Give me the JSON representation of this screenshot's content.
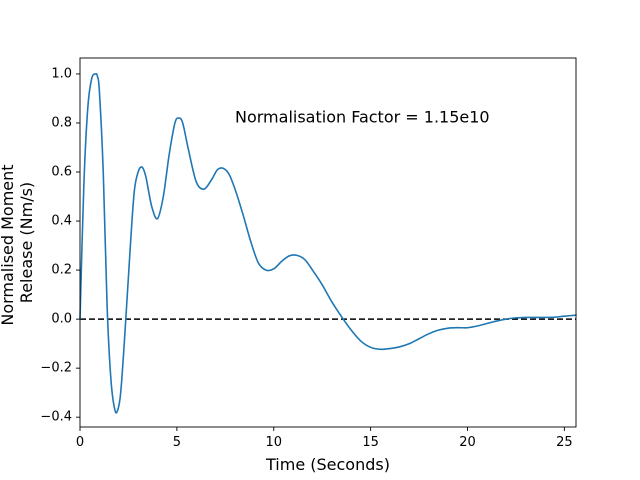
{
  "chart_data": {
    "type": "line",
    "title": "",
    "xlabel": "Time (Seconds)",
    "ylabel_lines": [
      "Normalised Moment",
      "Release (Nm/s)"
    ],
    "xlim": [
      0,
      25.6
    ],
    "ylim": [
      -0.44,
      1.065
    ],
    "xticks": [
      0,
      5,
      10,
      15,
      20,
      25
    ],
    "xtick_labels": [
      "0",
      "5",
      "10",
      "15",
      "20",
      "25"
    ],
    "yticks": [
      -0.4,
      -0.2,
      0.0,
      0.2,
      0.4,
      0.6,
      0.8,
      1.0
    ],
    "ytick_labels": [
      "−0.4",
      "−0.2",
      "0.0",
      "0.2",
      "0.4",
      "0.6",
      "0.8",
      "1.0"
    ],
    "grid": false,
    "annotation": {
      "text": "Normalisation Factor = 1.15e10",
      "x": 8.0,
      "y": 0.82
    },
    "reference_line": {
      "y": 0.0,
      "style": "dashed",
      "color": "#000000"
    },
    "series": [
      {
        "color": "#1f77b4",
        "x": [
          0.0,
          0.2,
          0.4,
          0.6,
          0.8,
          0.9,
          1.0,
          1.2,
          1.4,
          1.6,
          1.8,
          1.95,
          2.1,
          2.3,
          2.6,
          2.8,
          3.0,
          3.2,
          3.4,
          3.7,
          4.0,
          4.3,
          4.6,
          4.9,
          5.1,
          5.3,
          5.6,
          6.0,
          6.4,
          6.8,
          7.1,
          7.4,
          7.7,
          8.0,
          8.4,
          8.8,
          9.2,
          9.6,
          10.0,
          10.4,
          10.8,
          11.2,
          11.6,
          12.0,
          12.5,
          13.0,
          13.5,
          14.0,
          14.5,
          15.0,
          15.5,
          16.0,
          16.5,
          17.0,
          17.5,
          18.0,
          18.5,
          19.0,
          19.5,
          20.0,
          20.5,
          21.0,
          21.5,
          22.0,
          22.5,
          23.0,
          23.5,
          24.0,
          24.5,
          25.0,
          25.6
        ],
        "y": [
          0.0,
          0.55,
          0.86,
          0.98,
          1.0,
          0.99,
          0.93,
          0.6,
          0.05,
          -0.25,
          -0.37,
          -0.37,
          -0.3,
          -0.08,
          0.3,
          0.52,
          0.6,
          0.62,
          0.58,
          0.46,
          0.41,
          0.5,
          0.67,
          0.8,
          0.82,
          0.8,
          0.69,
          0.56,
          0.53,
          0.57,
          0.61,
          0.615,
          0.59,
          0.53,
          0.43,
          0.32,
          0.23,
          0.2,
          0.205,
          0.235,
          0.258,
          0.26,
          0.243,
          0.2,
          0.14,
          0.07,
          0.01,
          -0.045,
          -0.09,
          -0.115,
          -0.123,
          -0.12,
          -0.113,
          -0.1,
          -0.08,
          -0.06,
          -0.045,
          -0.037,
          -0.035,
          -0.035,
          -0.028,
          -0.018,
          -0.008,
          0.0,
          0.005,
          0.007,
          0.007,
          0.007,
          0.008,
          0.012,
          0.016
        ]
      }
    ]
  }
}
